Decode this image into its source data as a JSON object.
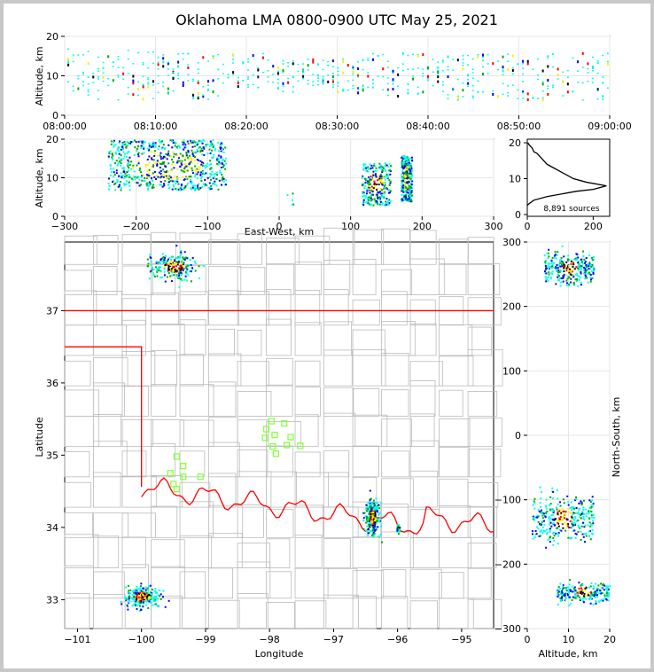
{
  "chart_data": [
    {
      "type": "scatter",
      "panel": "altitude-vs-time",
      "title": "Oklahoma LMA 0800-0900 UTC May 25, 2021",
      "ylabel": "Altitude, km",
      "xlim": [
        "08:00:00",
        "09:00:00"
      ],
      "ylim": [
        0,
        20
      ],
      "xticks": [
        "08:00:00",
        "08:10:00",
        "08:20:00",
        "08:30:00",
        "08:40:00",
        "08:50:00",
        "09:00:00"
      ],
      "yticks": [
        "0",
        "10",
        "20"
      ],
      "grid": true,
      "series": [
        {
          "x_minutes": [
            2,
            5,
            8,
            12,
            16,
            20,
            25,
            28,
            31,
            36,
            40,
            44,
            47,
            52,
            56
          ],
          "y_range_km": [
            [
              5,
              17
            ],
            [
              4,
              16
            ],
            [
              4,
              17
            ],
            [
              5,
              16
            ],
            [
              4,
              16
            ],
            [
              7,
              16
            ],
            [
              6,
              14
            ],
            [
              7,
              15
            ],
            [
              6,
              15
            ],
            [
              5,
              16
            ],
            [
              5,
              16
            ],
            [
              4,
              16
            ],
            [
              5,
              16
            ],
            [
              4,
              16
            ],
            [
              4,
              16
            ]
          ]
        }
      ]
    },
    {
      "type": "scatter",
      "panel": "altitude-vs-east-west",
      "xlabel": "East-West, km",
      "ylabel": "Altitude, km",
      "xlim": [
        -300,
        300
      ],
      "ylim": [
        0,
        20
      ],
      "xticks": [
        "−300",
        "−200",
        "−100",
        "0",
        "100",
        "200",
        "300"
      ],
      "yticks": [
        "0",
        "10",
        "20"
      ],
      "grid": true,
      "clusters": [
        {
          "x": [
            -240,
            -75
          ],
          "y": [
            7,
            20
          ]
        },
        {
          "x": [
            10,
            20
          ],
          "y": [
            3,
            8
          ]
        },
        {
          "x": [
            115,
            155
          ],
          "y": [
            3,
            14
          ]
        },
        {
          "x": [
            170,
            185
          ],
          "y": [
            4,
            16
          ]
        }
      ]
    },
    {
      "type": "line",
      "panel": "altitude-histogram",
      "annotation": "8,891 sources",
      "xlim": [
        0,
        250
      ],
      "ylim": [
        -0.5,
        21
      ],
      "xticks": [
        "0",
        "200"
      ],
      "yticks": [
        "0",
        "10",
        "20"
      ],
      "x": [
        0,
        5,
        20,
        60,
        150,
        200,
        240,
        180,
        140,
        120,
        100,
        80,
        60,
        50,
        40,
        30,
        20,
        15,
        10,
        5,
        2
      ],
      "y": [
        2.5,
        3,
        4,
        5,
        6.5,
        7,
        8,
        9,
        10,
        11,
        12,
        13,
        14,
        15,
        16,
        17,
        17.5,
        18.5,
        19,
        19.5,
        20
      ]
    },
    {
      "type": "scatter",
      "panel": "plan-view-map",
      "xlabel": "Longitude",
      "ylabel": "Latitude",
      "xlim": [
        -101.2,
        -94.5
      ],
      "ylim": [
        32.6,
        37.95
      ],
      "xticks": [
        "−101",
        "−100",
        "−99",
        "−98",
        "−97",
        "−96",
        "−95"
      ],
      "yticks": [
        "33",
        "34",
        "35",
        "36",
        "37"
      ],
      "clusters": [
        {
          "lon": [
            -100.1,
            -98.9
          ],
          "lat": [
            37.3,
            37.95
          ]
        },
        {
          "lon": [
            -96.6,
            -96.2
          ],
          "lat": [
            33.7,
            34.6
          ]
        },
        {
          "lon": [
            -96.05,
            -95.95
          ],
          "lat": [
            33.9,
            34.1
          ]
        },
        {
          "lon": [
            -100.5,
            -99.5
          ],
          "lat": [
            32.8,
            33.3
          ]
        }
      ],
      "stations": [
        {
          "lon": -99.45,
          "lat": 34.98
        },
        {
          "lon": -99.35,
          "lat": 34.85
        },
        {
          "lon": -99.55,
          "lat": 34.75
        },
        {
          "lon": -99.35,
          "lat": 34.7
        },
        {
          "lon": -99.5,
          "lat": 34.6
        },
        {
          "lon": -99.45,
          "lat": 34.53
        },
        {
          "lon": -99.08,
          "lat": 34.7
        },
        {
          "lon": -97.97,
          "lat": 35.47
        },
        {
          "lon": -98.05,
          "lat": 35.36
        },
        {
          "lon": -98.07,
          "lat": 35.24
        },
        {
          "lon": -97.92,
          "lat": 35.28
        },
        {
          "lon": -97.77,
          "lat": 35.44
        },
        {
          "lon": -97.67,
          "lat": 35.25
        },
        {
          "lon": -97.73,
          "lat": 35.14
        },
        {
          "lon": -97.95,
          "lat": 35.12
        },
        {
          "lon": -97.9,
          "lat": 35.02
        },
        {
          "lon": -97.52,
          "lat": 35.13
        }
      ]
    },
    {
      "type": "scatter",
      "panel": "north-south-vs-altitude",
      "xlabel": "Altitude, km",
      "ylabel": "North-South, km",
      "xlim": [
        0,
        20
      ],
      "ylim": [
        -300,
        300
      ],
      "xticks": [
        "0",
        "10",
        "20"
      ],
      "yticks": [
        "−300",
        "−200",
        "−100",
        "0",
        "100",
        "200",
        "300"
      ],
      "grid": true,
      "clusters": [
        {
          "x": [
            4,
            16
          ],
          "y": [
            220,
            300
          ]
        },
        {
          "x": [
            1,
            16
          ],
          "y": [
            -190,
            -65
          ]
        },
        {
          "x": [
            7,
            20
          ],
          "y": [
            -270,
            -215
          ]
        }
      ]
    }
  ],
  "colors": {
    "low": "#00ffee",
    "mid_low": "#0000ff",
    "mid": "#00aa00",
    "mid_high": "#ffee00",
    "high": "#ff0000",
    "peak": "#000000",
    "state_border": "#ff0000",
    "county_border": "#bbbbbb",
    "station": "#88ff44"
  }
}
